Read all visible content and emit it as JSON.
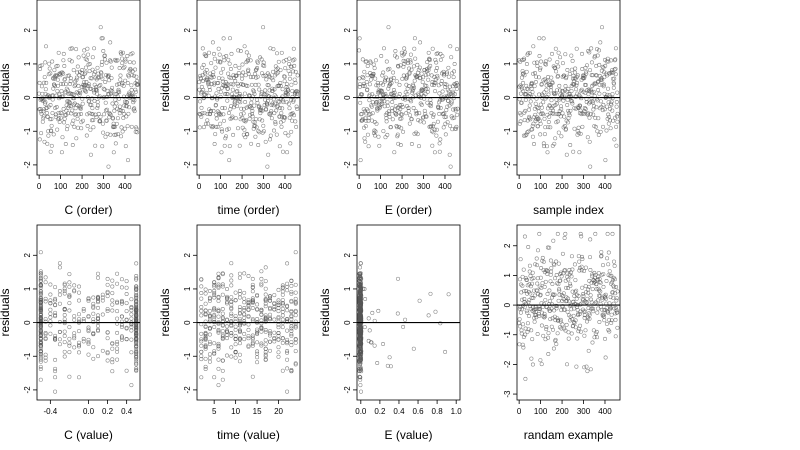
{
  "colors": {
    "point": "#555555",
    "axis": "#000000",
    "zero_line": "#000000",
    "background": "#ffffff"
  },
  "chart_data": [
    {
      "type": "scatter",
      "xlabel": "C (order)",
      "ylabel": "residuals",
      "xlim": [
        -10,
        470
      ],
      "ylim": [
        -2.3,
        2.9
      ],
      "xticks": [
        0,
        100,
        200,
        300,
        400
      ],
      "xtick_labels": [
        "0",
        "100",
        "200",
        "300",
        "400"
      ],
      "yticks": [
        -2,
        -1,
        0,
        1,
        2
      ],
      "ytick_labels": [
        "-2",
        "-1",
        "0",
        "1",
        "2"
      ],
      "reference_line_y": 0,
      "n_points": 460,
      "pattern": "index"
    },
    {
      "type": "scatter",
      "xlabel": "time (order)",
      "ylabel": "residuals",
      "xlim": [
        -10,
        470
      ],
      "ylim": [
        -2.3,
        2.9
      ],
      "xticks": [
        0,
        100,
        200,
        300,
        400
      ],
      "xtick_labels": [
        "0",
        "100",
        "200",
        "300",
        "400"
      ],
      "yticks": [
        -2,
        -1,
        0,
        1,
        2
      ],
      "ytick_labels": [
        "-2",
        "-1",
        "0",
        "1",
        "2"
      ],
      "reference_line_y": 0,
      "n_points": 460,
      "pattern": "index"
    },
    {
      "type": "scatter",
      "xlabel": "E (order)",
      "ylabel": "residuals",
      "xlim": [
        -10,
        470
      ],
      "ylim": [
        -2.3,
        2.9
      ],
      "xticks": [
        0,
        100,
        200,
        300,
        400
      ],
      "xtick_labels": [
        "0",
        "100",
        "200",
        "300",
        "400"
      ],
      "yticks": [
        -2,
        -1,
        0,
        1,
        2
      ],
      "ytick_labels": [
        "-2",
        "-1",
        "0",
        "1",
        "2"
      ],
      "reference_line_y": 0,
      "n_points": 460,
      "pattern": "index"
    },
    {
      "type": "scatter",
      "xlabel": "sample index",
      "ylabel": "residuals",
      "xlim": [
        -10,
        470
      ],
      "ylim": [
        -2.3,
        2.9
      ],
      "xticks": [
        0,
        100,
        200,
        300,
        400
      ],
      "xtick_labels": [
        "0",
        "100",
        "200",
        "300",
        "400"
      ],
      "yticks": [
        -2,
        -1,
        0,
        1,
        2
      ],
      "ytick_labels": [
        "-2",
        "-1",
        "0",
        "1",
        "2"
      ],
      "reference_line_y": 0,
      "n_points": 460,
      "pattern": "index"
    },
    {
      "type": "scatter",
      "xlabel": "C (value)",
      "ylabel": "residuals",
      "xlim": [
        -0.54,
        0.54
      ],
      "ylim": [
        -2.3,
        2.9
      ],
      "xticks": [
        -0.4,
        0,
        0.2,
        0.4
      ],
      "xtick_labels": [
        "-0.4",
        "0.0",
        "0.2",
        "0.4"
      ],
      "yticks": [
        -2,
        -1,
        0,
        1,
        2
      ],
      "ytick_labels": [
        "-2",
        "-1",
        "0",
        "1",
        "2"
      ],
      "reference_line_y": 0,
      "n_points": 460,
      "pattern": "discrete",
      "x_levels": [
        -0.5,
        -0.45,
        -0.4,
        -0.35,
        -0.3,
        -0.25,
        -0.2,
        -0.15,
        -0.1,
        -0.05,
        0,
        0.05,
        0.1,
        0.15,
        0.2,
        0.25,
        0.3,
        0.35,
        0.4,
        0.45,
        0.5
      ]
    },
    {
      "type": "scatter",
      "xlabel": "time (value)",
      "ylabel": "residuals",
      "xlim": [
        1,
        25
      ],
      "ylim": [
        -2.3,
        2.9
      ],
      "xticks": [
        5,
        10,
        15,
        20
      ],
      "xtick_labels": [
        "5",
        "10",
        "15",
        "20"
      ],
      "yticks": [
        -2,
        -1,
        0,
        1,
        2
      ],
      "ytick_labels": [
        "-2",
        "-1",
        "0",
        "1",
        "2"
      ],
      "reference_line_y": 0,
      "n_points": 460,
      "pattern": "discrete",
      "x_levels": [
        2,
        3,
        4,
        5,
        6,
        7,
        8,
        9,
        10,
        11,
        12,
        13,
        14,
        15,
        16,
        17,
        18,
        19,
        20,
        21,
        22,
        23,
        24
      ]
    },
    {
      "type": "scatter",
      "xlabel": "E (value)",
      "ylabel": "residuals",
      "xlim": [
        -0.04,
        1.04
      ],
      "ylim": [
        -2.3,
        2.9
      ],
      "xticks": [
        0,
        0.2,
        0.4,
        0.6,
        0.8,
        1.0
      ],
      "xtick_labels": [
        "0.0",
        "0.2",
        "0.4",
        "0.6",
        "0.8",
        "1.0"
      ],
      "yticks": [
        -2,
        -1,
        0,
        1,
        2
      ],
      "ytick_labels": [
        "-2",
        "-1",
        "0",
        "1",
        "2"
      ],
      "reference_line_y": 0,
      "n_points": 460,
      "pattern": "skewed"
    },
    {
      "type": "scatter",
      "xlabel": "randam example",
      "ylabel": "residuals",
      "xlim": [
        -10,
        470
      ],
      "ylim": [
        -3.2,
        2.7
      ],
      "xticks": [
        0,
        100,
        200,
        300,
        400
      ],
      "xtick_labels": [
        "0",
        "100",
        "200",
        "300",
        "400"
      ],
      "yticks": [
        -3,
        -2,
        -1,
        0,
        1,
        2
      ],
      "ytick_labels": [
        "-3",
        "-2",
        "-1",
        "0",
        "1",
        "2"
      ],
      "reference_line_y": 0,
      "n_points": 460,
      "pattern": "random"
    }
  ]
}
